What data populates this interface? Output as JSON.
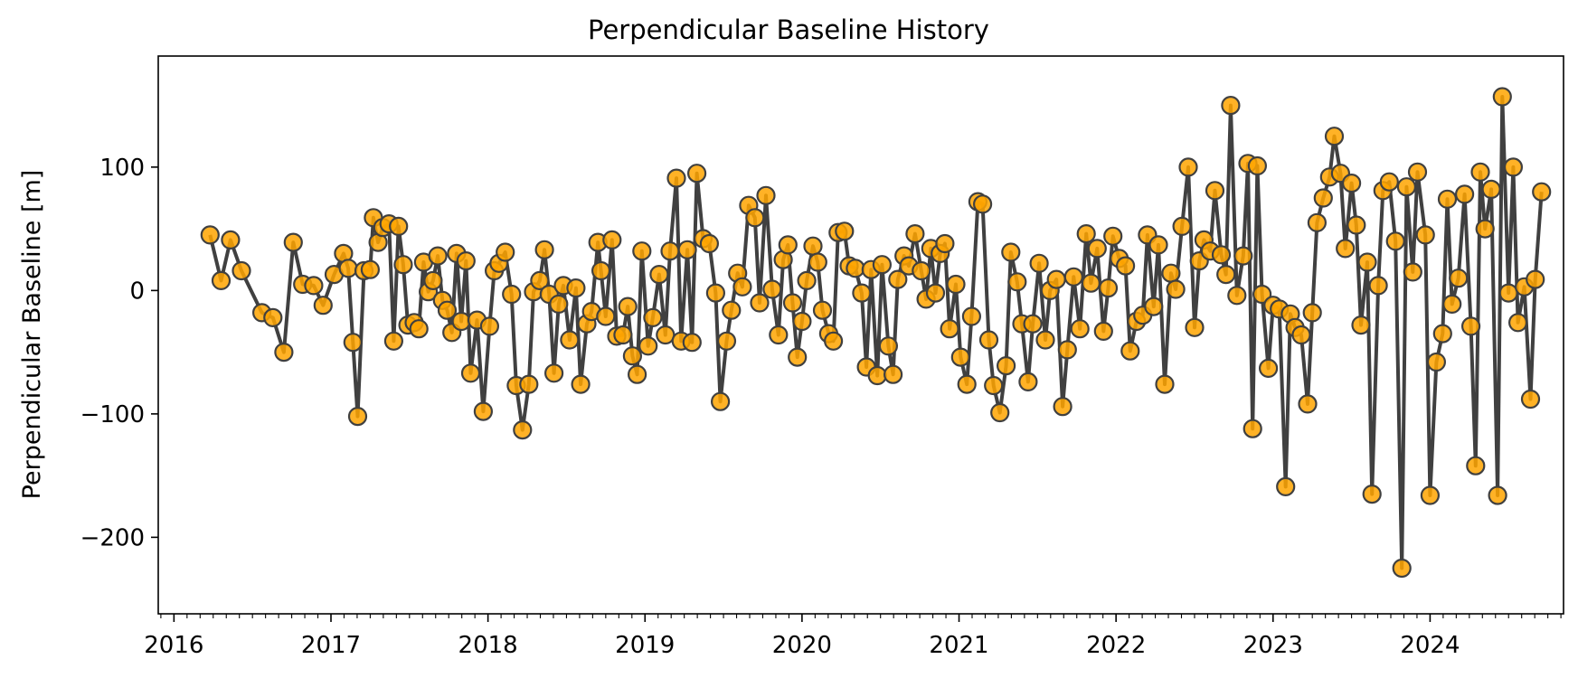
{
  "chart_data": {
    "type": "line",
    "title": "Perpendicular Baseline History",
    "ylabel": "Perpendicular Baseline [m]",
    "xlabel": "",
    "xlim": [
      2015.9,
      2024.85
    ],
    "ylim": [
      -262,
      190
    ],
    "y_ticks": [
      100,
      0,
      -100,
      -200
    ],
    "y_tick_labels": [
      "100",
      "0",
      "−100",
      "−200"
    ],
    "x_ticks": [
      2016,
      2017,
      2018,
      2019,
      2020,
      2021,
      2022,
      2023,
      2024
    ],
    "x_tick_labels": [
      "2016",
      "2017",
      "2018",
      "2019",
      "2020",
      "2021",
      "2022",
      "2023",
      "2024"
    ],
    "grid": false,
    "line_color": "#404040",
    "marker_fill": "#FFA500",
    "marker_edge": "#404040",
    "series": [
      {
        "points": [
          [
            2016.23,
            45
          ],
          [
            2016.3,
            8
          ],
          [
            2016.36,
            41
          ],
          [
            2016.43,
            16
          ],
          [
            2016.56,
            -18
          ],
          [
            2016.63,
            -22
          ],
          [
            2016.7,
            -50
          ],
          [
            2016.76,
            39
          ],
          [
            2016.82,
            5
          ],
          [
            2016.89,
            4
          ],
          [
            2016.95,
            -12
          ],
          [
            2017.02,
            13
          ],
          [
            2017.08,
            30
          ],
          [
            2017.11,
            18
          ],
          [
            2017.14,
            -42
          ],
          [
            2017.17,
            -102
          ],
          [
            2017.21,
            16
          ],
          [
            2017.25,
            17
          ],
          [
            2017.27,
            59
          ],
          [
            2017.3,
            39
          ],
          [
            2017.33,
            51
          ],
          [
            2017.37,
            54
          ],
          [
            2017.4,
            -41
          ],
          [
            2017.43,
            52
          ],
          [
            2017.46,
            21
          ],
          [
            2017.49,
            -28
          ],
          [
            2017.53,
            -26
          ],
          [
            2017.56,
            -31
          ],
          [
            2017.59,
            23
          ],
          [
            2017.62,
            -1
          ],
          [
            2017.65,
            8
          ],
          [
            2017.68,
            28
          ],
          [
            2017.71,
            -8
          ],
          [
            2017.74,
            -16
          ],
          [
            2017.77,
            -34
          ],
          [
            2017.8,
            30
          ],
          [
            2017.83,
            -25
          ],
          [
            2017.86,
            24
          ],
          [
            2017.89,
            -67
          ],
          [
            2017.93,
            -24
          ],
          [
            2017.97,
            -98
          ],
          [
            2018.01,
            -29
          ],
          [
            2018.04,
            16
          ],
          [
            2018.07,
            22
          ],
          [
            2018.11,
            31
          ],
          [
            2018.15,
            -3
          ],
          [
            2018.18,
            -77
          ],
          [
            2018.22,
            -113
          ],
          [
            2018.26,
            -76
          ],
          [
            2018.29,
            -1
          ],
          [
            2018.33,
            8
          ],
          [
            2018.36,
            33
          ],
          [
            2018.39,
            -3
          ],
          [
            2018.42,
            -67
          ],
          [
            2018.45,
            -11
          ],
          [
            2018.48,
            4
          ],
          [
            2018.52,
            -40
          ],
          [
            2018.56,
            2
          ],
          [
            2018.59,
            -76
          ],
          [
            2018.63,
            -27
          ],
          [
            2018.66,
            -17
          ],
          [
            2018.7,
            39
          ],
          [
            2018.72,
            16
          ],
          [
            2018.75,
            -21
          ],
          [
            2018.79,
            41
          ],
          [
            2018.82,
            -37
          ],
          [
            2018.86,
            -36
          ],
          [
            2018.89,
            -13
          ],
          [
            2018.92,
            -53
          ],
          [
            2018.95,
            -68
          ],
          [
            2018.98,
            32
          ],
          [
            2019.02,
            -45
          ],
          [
            2019.05,
            -22
          ],
          [
            2019.09,
            13
          ],
          [
            2019.13,
            -36
          ],
          [
            2019.16,
            32
          ],
          [
            2019.2,
            91
          ],
          [
            2019.23,
            -41
          ],
          [
            2019.27,
            33
          ],
          [
            2019.3,
            -42
          ],
          [
            2019.33,
            95
          ],
          [
            2019.37,
            42
          ],
          [
            2019.41,
            38
          ],
          [
            2019.45,
            -2
          ],
          [
            2019.48,
            -90
          ],
          [
            2019.52,
            -41
          ],
          [
            2019.55,
            -16
          ],
          [
            2019.59,
            14
          ],
          [
            2019.62,
            3
          ],
          [
            2019.66,
            69
          ],
          [
            2019.7,
            59
          ],
          [
            2019.73,
            -10
          ],
          [
            2019.77,
            77
          ],
          [
            2019.81,
            1
          ],
          [
            2019.85,
            -36
          ],
          [
            2019.88,
            25
          ],
          [
            2019.91,
            37
          ],
          [
            2019.94,
            -10
          ],
          [
            2019.97,
            -54
          ],
          [
            2020.0,
            -25
          ],
          [
            2020.03,
            8
          ],
          [
            2020.07,
            36
          ],
          [
            2020.1,
            23
          ],
          [
            2020.13,
            -16
          ],
          [
            2020.17,
            -35
          ],
          [
            2020.2,
            -41
          ],
          [
            2020.23,
            47
          ],
          [
            2020.27,
            48
          ],
          [
            2020.3,
            20
          ],
          [
            2020.34,
            18
          ],
          [
            2020.38,
            -2
          ],
          [
            2020.41,
            -62
          ],
          [
            2020.44,
            17
          ],
          [
            2020.48,
            -69
          ],
          [
            2020.51,
            21
          ],
          [
            2020.55,
            -45
          ],
          [
            2020.58,
            -68
          ],
          [
            2020.61,
            9
          ],
          [
            2020.65,
            28
          ],
          [
            2020.68,
            20
          ],
          [
            2020.72,
            46
          ],
          [
            2020.76,
            16
          ],
          [
            2020.79,
            -7
          ],
          [
            2020.82,
            34
          ],
          [
            2020.85,
            -2
          ],
          [
            2020.88,
            30
          ],
          [
            2020.91,
            38
          ],
          [
            2020.94,
            -31
          ],
          [
            2020.98,
            5
          ],
          [
            2021.01,
            -54
          ],
          [
            2021.05,
            -76
          ],
          [
            2021.08,
            -21
          ],
          [
            2021.12,
            72
          ],
          [
            2021.15,
            70
          ],
          [
            2021.19,
            -40
          ],
          [
            2021.22,
            -77
          ],
          [
            2021.26,
            -99
          ],
          [
            2021.3,
            -61
          ],
          [
            2021.33,
            31
          ],
          [
            2021.37,
            7
          ],
          [
            2021.4,
            -27
          ],
          [
            2021.44,
            -74
          ],
          [
            2021.47,
            -27
          ],
          [
            2021.51,
            22
          ],
          [
            2021.55,
            -40
          ],
          [
            2021.58,
            0
          ],
          [
            2021.62,
            9
          ],
          [
            2021.66,
            -94
          ],
          [
            2021.69,
            -48
          ],
          [
            2021.73,
            11
          ],
          [
            2021.77,
            -31
          ],
          [
            2021.81,
            46
          ],
          [
            2021.84,
            6
          ],
          [
            2021.88,
            34
          ],
          [
            2021.92,
            -33
          ],
          [
            2021.95,
            2
          ],
          [
            2021.98,
            44
          ],
          [
            2022.02,
            26
          ],
          [
            2022.06,
            20
          ],
          [
            2022.09,
            -49
          ],
          [
            2022.13,
            -25
          ],
          [
            2022.17,
            -20
          ],
          [
            2022.2,
            45
          ],
          [
            2022.24,
            -13
          ],
          [
            2022.27,
            37
          ],
          [
            2022.31,
            -76
          ],
          [
            2022.35,
            14
          ],
          [
            2022.38,
            1
          ],
          [
            2022.42,
            52
          ],
          [
            2022.46,
            100
          ],
          [
            2022.5,
            -30
          ],
          [
            2022.53,
            24
          ],
          [
            2022.56,
            41
          ],
          [
            2022.6,
            32
          ],
          [
            2022.63,
            81
          ],
          [
            2022.67,
            29
          ],
          [
            2022.7,
            13
          ],
          [
            2022.73,
            150
          ],
          [
            2022.77,
            -4
          ],
          [
            2022.81,
            28
          ],
          [
            2022.84,
            103
          ],
          [
            2022.87,
            -112
          ],
          [
            2022.9,
            101
          ],
          [
            2022.93,
            -3
          ],
          [
            2022.97,
            -63
          ],
          [
            2023.0,
            -12
          ],
          [
            2023.04,
            -15
          ],
          [
            2023.08,
            -159
          ],
          [
            2023.11,
            -19
          ],
          [
            2023.14,
            -30
          ],
          [
            2023.18,
            -36
          ],
          [
            2023.22,
            -92
          ],
          [
            2023.25,
            -18
          ],
          [
            2023.28,
            55
          ],
          [
            2023.32,
            75
          ],
          [
            2023.36,
            92
          ],
          [
            2023.39,
            125
          ],
          [
            2023.43,
            95
          ],
          [
            2023.46,
            34
          ],
          [
            2023.5,
            87
          ],
          [
            2023.53,
            53
          ],
          [
            2023.56,
            -28
          ],
          [
            2023.6,
            23
          ],
          [
            2023.63,
            -165
          ],
          [
            2023.67,
            4
          ],
          [
            2023.7,
            81
          ],
          [
            2023.74,
            88
          ],
          [
            2023.78,
            40
          ],
          [
            2023.82,
            -225
          ],
          [
            2023.85,
            84
          ],
          [
            2023.89,
            15
          ],
          [
            2023.92,
            96
          ],
          [
            2023.97,
            45
          ],
          [
            2024.0,
            -166
          ],
          [
            2024.04,
            -58
          ],
          [
            2024.08,
            -35
          ],
          [
            2024.11,
            74
          ],
          [
            2024.14,
            -11
          ],
          [
            2024.18,
            10
          ],
          [
            2024.22,
            78
          ],
          [
            2024.26,
            -29
          ],
          [
            2024.29,
            -142
          ],
          [
            2024.32,
            96
          ],
          [
            2024.35,
            50
          ],
          [
            2024.39,
            82
          ],
          [
            2024.43,
            -166
          ],
          [
            2024.46,
            157
          ],
          [
            2024.5,
            -2
          ],
          [
            2024.53,
            100
          ],
          [
            2024.56,
            -26
          ],
          [
            2024.6,
            3
          ],
          [
            2024.64,
            -88
          ],
          [
            2024.67,
            9
          ],
          [
            2024.71,
            80
          ]
        ]
      }
    ]
  }
}
